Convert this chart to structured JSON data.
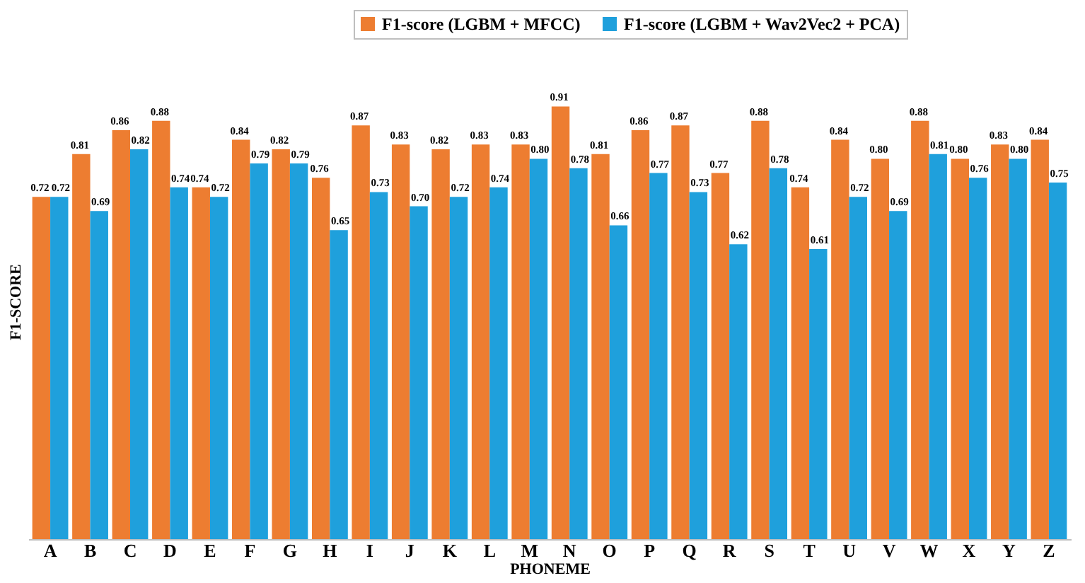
{
  "chart_data": {
    "type": "bar",
    "xlabel": "PHONEME",
    "ylabel": "F1-SCORE",
    "categories": [
      "A",
      "B",
      "C",
      "D",
      "E",
      "F",
      "G",
      "H",
      "I",
      "J",
      "K",
      "L",
      "M",
      "N",
      "O",
      "P",
      "Q",
      "R",
      "S",
      "T",
      "U",
      "V",
      "W",
      "X",
      "Y",
      "Z"
    ],
    "series": [
      {
        "name": "F1-score (LGBM + MFCC)",
        "color": "#ed7d31",
        "values": [
          0.72,
          0.81,
          0.86,
          0.88,
          0.74,
          0.84,
          0.82,
          0.76,
          0.87,
          0.83,
          0.82,
          0.83,
          0.83,
          0.91,
          0.81,
          0.86,
          0.87,
          0.77,
          0.88,
          0.74,
          0.84,
          0.8,
          0.88,
          0.8,
          0.83,
          0.84
        ],
        "value_labels": [
          "0.72",
          "0.81",
          "0.86",
          "0.88",
          "0.74",
          "0.84",
          "0.82",
          "0.76",
          "0.87",
          "0.83",
          "0.82",
          "0.83",
          "0.83",
          "0.91",
          "0.81",
          "0.86",
          "0.87",
          "0.77",
          "0.88",
          "0.74",
          "0.84",
          "0.80",
          "0.88",
          "0.80",
          "0.83",
          "0.84"
        ]
      },
      {
        "name": "F1-score (LGBM + Wav2Vec2 + PCA)",
        "color": "#1fa0dc",
        "values": [
          0.72,
          0.69,
          0.82,
          0.74,
          0.72,
          0.79,
          0.79,
          0.65,
          0.73,
          0.7,
          0.72,
          0.74,
          0.8,
          0.78,
          0.66,
          0.77,
          0.73,
          0.62,
          0.78,
          0.61,
          0.72,
          0.69,
          0.81,
          0.76,
          0.8,
          0.75
        ],
        "value_labels": [
          "0.72",
          "0.69",
          "0.82",
          "0.74",
          "0.72",
          "0.79",
          "0.79",
          "0.65",
          "0.73",
          "0.70",
          "0.72",
          "0.74",
          "0.80",
          "0.78",
          "0.66",
          "0.77",
          "0.73",
          "0.62",
          "0.78",
          "0.61",
          "0.72",
          "0.69",
          "0.81",
          "0.76",
          "0.80",
          "0.75"
        ]
      }
    ],
    "tick_labels": "x",
    "legend": "top right",
    "grid": false
  }
}
